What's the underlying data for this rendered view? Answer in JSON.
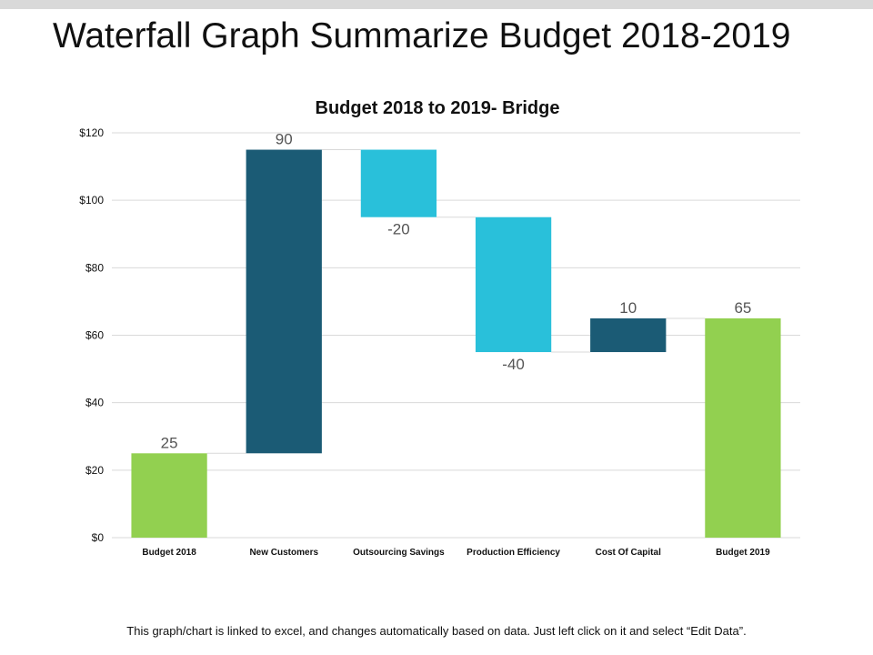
{
  "slide": {
    "title": "Waterfall Graph Summarize Budget 2018-2019",
    "footer": "This graph/chart is linked to excel, and changes automatically based on data.  Just left click on it and select “Edit Data”."
  },
  "colors": {
    "start_end": "#92d050",
    "increase": "#1b5b75",
    "decrease": "#29c0da",
    "grid": "#d9d9d9",
    "label": "#555555"
  },
  "chart_data": {
    "type": "bar",
    "subtype": "waterfall",
    "title": "Budget 2018 to 2019-  Bridge",
    "xlabel": "",
    "ylabel": "",
    "ylim": [
      0,
      120
    ],
    "ytick_step": 20,
    "ytick_labels": [
      "$0",
      "$20",
      "$40",
      "$60",
      "$80",
      "$100",
      "$120"
    ],
    "grid": true,
    "legend": "none",
    "categories": [
      "Budget 2018",
      "New Customers",
      "Outsourcing Savings",
      "Production Efficiency",
      "Cost Of Capital",
      "Budget 2019"
    ],
    "values": [
      25,
      90,
      -20,
      -40,
      10,
      65
    ],
    "data_labels": [
      "25",
      "90",
      "-20",
      "-40",
      "10",
      "65"
    ],
    "kinds": [
      "total",
      "increase",
      "decrease",
      "decrease",
      "increase",
      "total"
    ]
  }
}
